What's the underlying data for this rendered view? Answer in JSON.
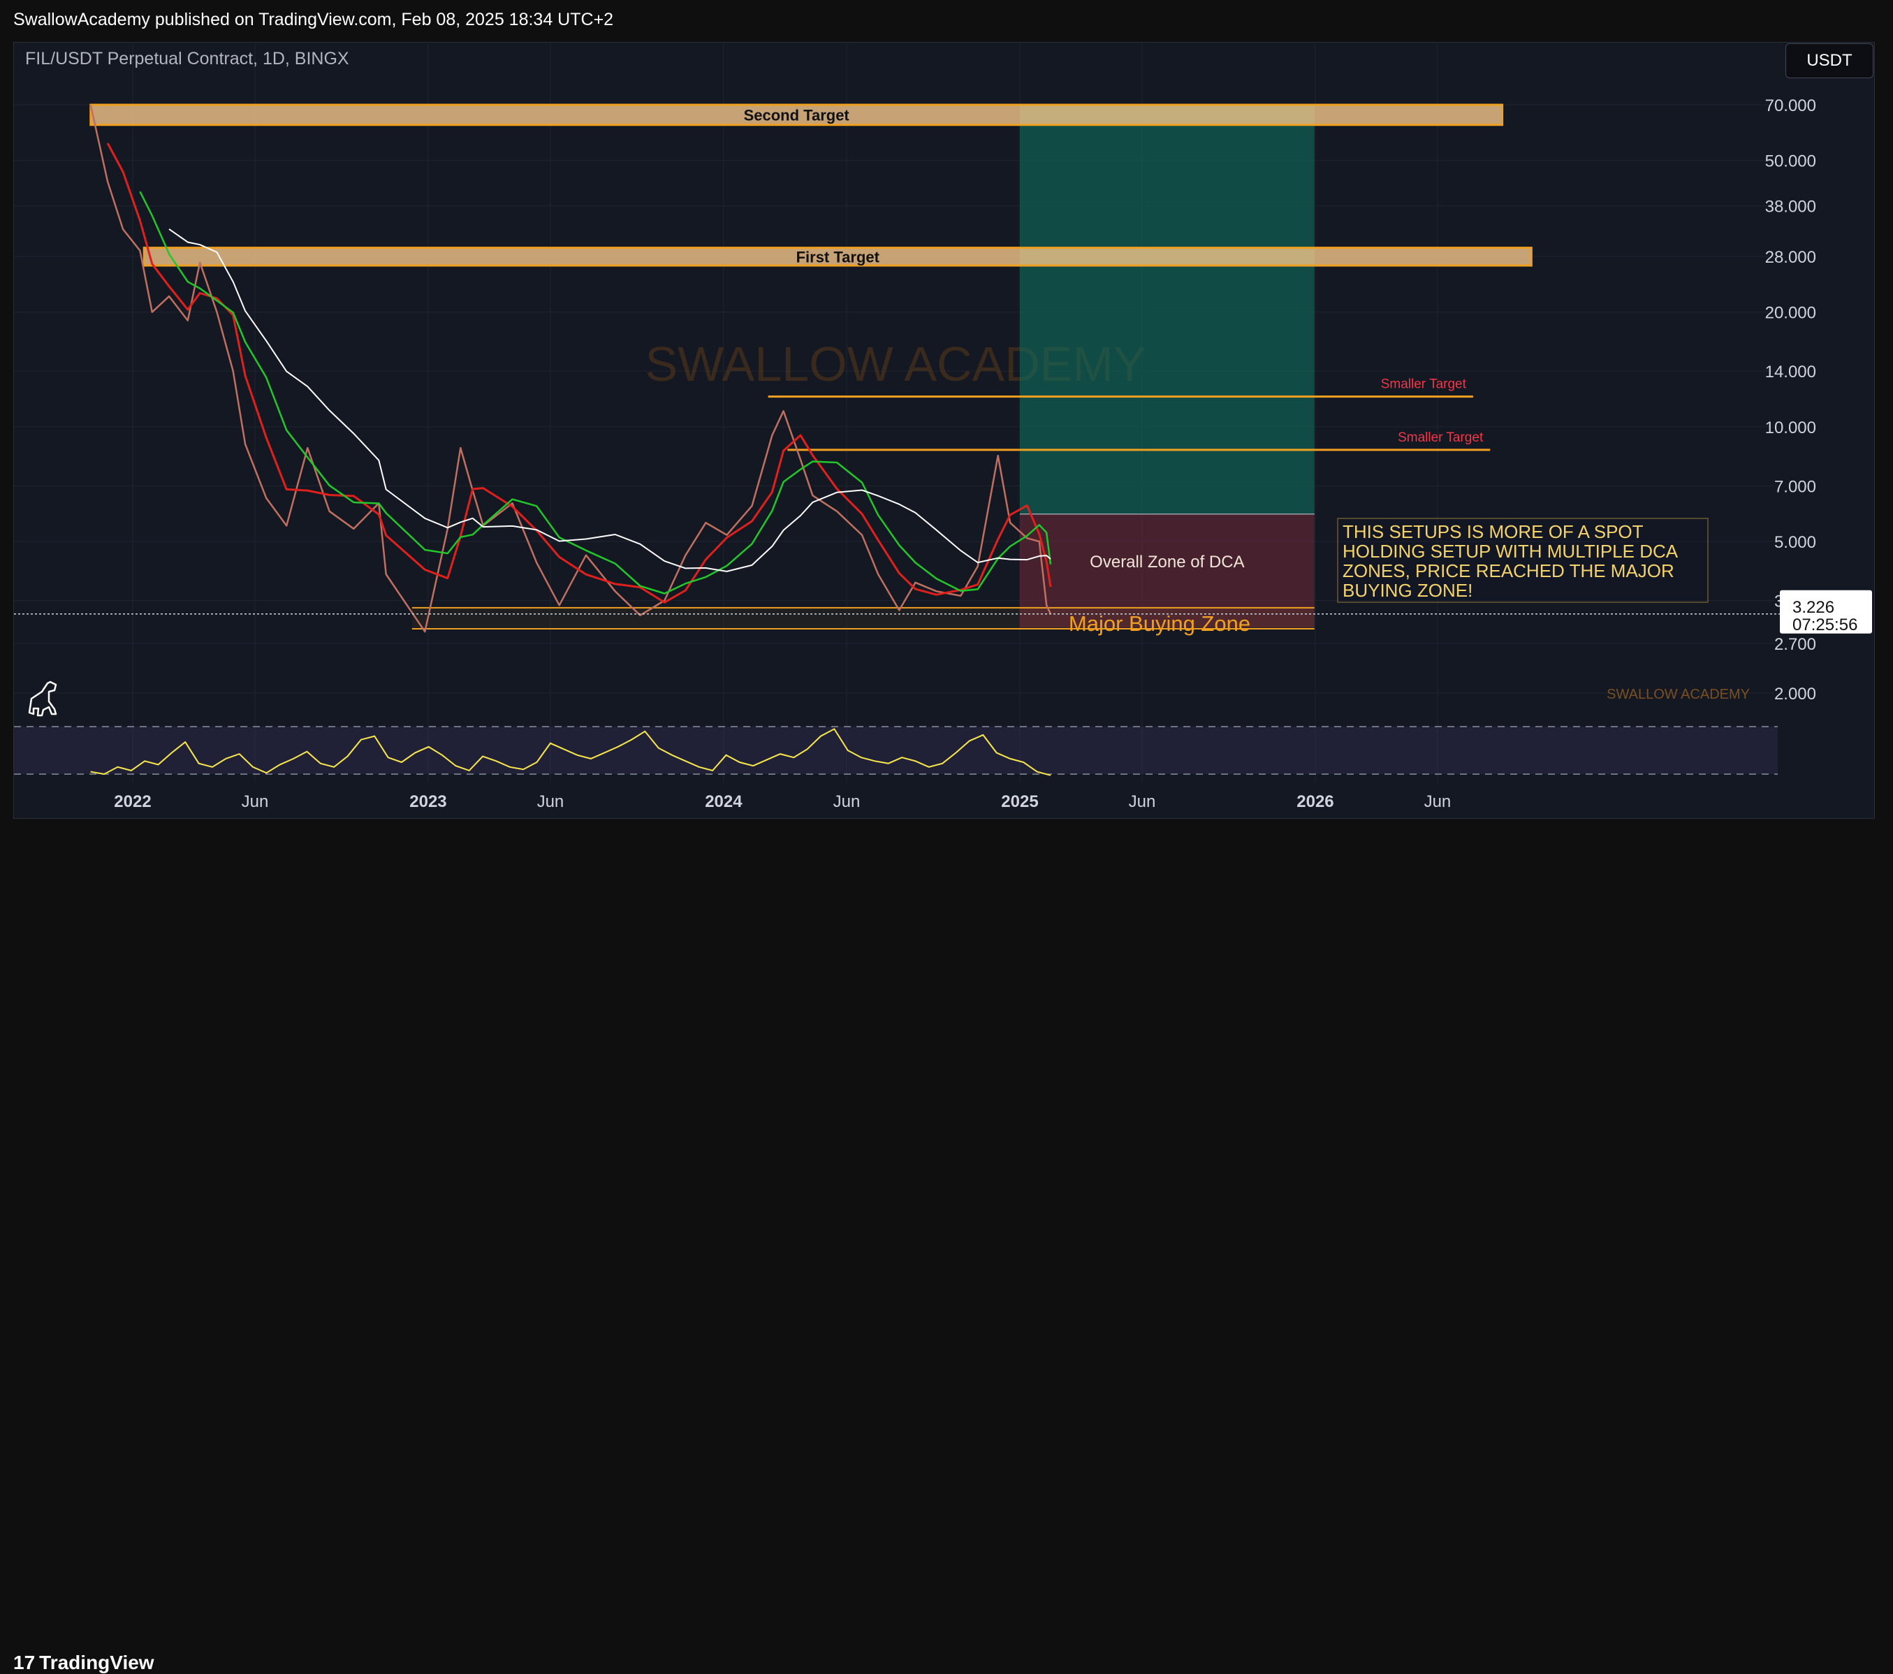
{
  "header": {
    "published_text": "SwallowAcademy published on TradingView.com, Feb 08, 2025 18:34 UTC+2"
  },
  "chart_title": "FIL/USDT Perpetual Contract, 1D, BINGX",
  "currency_button": "USDT",
  "footer": {
    "logo_text": "TradingView",
    "logo_mark": "17"
  },
  "colors": {
    "background": "#141823",
    "candle_up": "#26a69a",
    "candle_down": "#ef5350",
    "ma_red": "#e0201c",
    "ma_green": "#22c72a",
    "ma_white": "#ffffff",
    "target_zone": "#f0a020",
    "smaller_target": "#f23645",
    "rsi_line": "#f5e642",
    "rsi_purple": "#7e57c2"
  },
  "chart_data": {
    "type": "line",
    "title": "FIL/USDT Perpetual Contract, 1D, BINGX",
    "y_scale": "log",
    "y_ticks": [
      {
        "value": 70,
        "label": "70.000"
      },
      {
        "value": 50,
        "label": "50.000"
      },
      {
        "value": 38,
        "label": "38.000"
      },
      {
        "value": 28,
        "label": "28.000"
      },
      {
        "value": 20,
        "label": "20.000"
      },
      {
        "value": 14,
        "label": "14.000"
      },
      {
        "value": 10,
        "label": "10.000"
      },
      {
        "value": 7,
        "label": "7.000"
      },
      {
        "value": 5,
        "label": "5.000"
      },
      {
        "value": 3.5,
        "label": "3.500"
      },
      {
        "value": 2.7,
        "label": "2.700"
      },
      {
        "value": 2,
        "label": "2.000"
      }
    ],
    "x_ticks": [
      {
        "date": "2022-01-01",
        "label": "2022",
        "bold": true
      },
      {
        "date": "2022-06-01",
        "label": "Jun",
        "bold": false
      },
      {
        "date": "2023-01-01",
        "label": "2023",
        "bold": true
      },
      {
        "date": "2023-06-01",
        "label": "Jun",
        "bold": false
      },
      {
        "date": "2024-01-01",
        "label": "2024",
        "bold": true
      },
      {
        "date": "2024-06-01",
        "label": "Jun",
        "bold": false
      },
      {
        "date": "2025-01-01",
        "label": "2025",
        "bold": true
      },
      {
        "date": "2025-06-01",
        "label": "Jun",
        "bold": false
      },
      {
        "date": "2026-01-01",
        "label": "2026",
        "bold": true
      },
      {
        "date": "2026-06-01",
        "label": "Jun",
        "bold": false
      }
    ],
    "price_series": [
      {
        "date": "2021-11-10",
        "close": 70
      },
      {
        "date": "2021-12-01",
        "close": 44
      },
      {
        "date": "2021-12-20",
        "close": 33
      },
      {
        "date": "2022-01-10",
        "close": 29
      },
      {
        "date": "2022-01-25",
        "close": 20
      },
      {
        "date": "2022-02-15",
        "close": 22
      },
      {
        "date": "2022-03-10",
        "close": 19
      },
      {
        "date": "2022-03-25",
        "close": 27
      },
      {
        "date": "2022-04-15",
        "close": 20
      },
      {
        "date": "2022-05-05",
        "close": 14
      },
      {
        "date": "2022-05-20",
        "close": 9
      },
      {
        "date": "2022-06-15",
        "close": 6.5
      },
      {
        "date": "2022-07-10",
        "close": 5.5
      },
      {
        "date": "2022-08-05",
        "close": 8.8
      },
      {
        "date": "2022-09-01",
        "close": 6.0
      },
      {
        "date": "2022-10-01",
        "close": 5.4
      },
      {
        "date": "2022-11-01",
        "close": 6.3
      },
      {
        "date": "2022-11-10",
        "close": 4.1
      },
      {
        "date": "2022-12-28",
        "close": 2.9
      },
      {
        "date": "2023-01-25",
        "close": 5.4
      },
      {
        "date": "2023-02-10",
        "close": 8.8
      },
      {
        "date": "2023-02-25",
        "close": 6.8
      },
      {
        "date": "2023-03-10",
        "close": 5.5
      },
      {
        "date": "2023-04-15",
        "close": 6.3
      },
      {
        "date": "2023-05-15",
        "close": 4.4
      },
      {
        "date": "2023-06-12",
        "close": 3.4
      },
      {
        "date": "2023-07-15",
        "close": 4.6
      },
      {
        "date": "2023-08-20",
        "close": 3.7
      },
      {
        "date": "2023-09-20",
        "close": 3.2
      },
      {
        "date": "2023-10-20",
        "close": 3.5
      },
      {
        "date": "2023-11-15",
        "close": 4.6
      },
      {
        "date": "2023-12-10",
        "close": 5.6
      },
      {
        "date": "2024-01-05",
        "close": 5.2
      },
      {
        "date": "2024-02-05",
        "close": 6.2
      },
      {
        "date": "2024-03-01",
        "close": 9.5
      },
      {
        "date": "2024-03-15",
        "close": 11.0
      },
      {
        "date": "2024-04-05",
        "close": 8.2
      },
      {
        "date": "2024-04-20",
        "close": 6.6
      },
      {
        "date": "2024-05-20",
        "close": 6.0
      },
      {
        "date": "2024-06-20",
        "close": 5.2
      },
      {
        "date": "2024-07-10",
        "close": 4.1
      },
      {
        "date": "2024-08-05",
        "close": 3.3
      },
      {
        "date": "2024-08-25",
        "close": 3.9
      },
      {
        "date": "2024-09-20",
        "close": 3.7
      },
      {
        "date": "2024-10-20",
        "close": 3.6
      },
      {
        "date": "2024-11-10",
        "close": 4.3
      },
      {
        "date": "2024-12-05",
        "close": 8.4
      },
      {
        "date": "2024-12-20",
        "close": 5.6
      },
      {
        "date": "2025-01-10",
        "close": 5.1
      },
      {
        "date": "2025-01-25",
        "close": 5.0
      },
      {
        "date": "2025-02-03",
        "close": 3.4
      },
      {
        "date": "2025-02-08",
        "close": 3.226
      }
    ],
    "current_price": {
      "value": 3.226,
      "label": "3.226",
      "countdown": "07:25:56"
    },
    "annotations": {
      "second_target": {
        "label": "Second Target",
        "low": 62,
        "high": 70,
        "start": "2021-11-10",
        "end": "2026-08-20"
      },
      "first_target": {
        "label": "First Target",
        "low": 26.5,
        "high": 29.5,
        "start": "2022-01-15",
        "end": "2026-09-25"
      },
      "smaller_target_1": {
        "label": "Smaller Target",
        "value": 12,
        "start": "2024-02-25",
        "end": "2026-07-15"
      },
      "smaller_target_2": {
        "label": "Smaller Target",
        "value": 8.7,
        "start": "2024-03-20",
        "end": "2026-08-05"
      },
      "long_position_profit": {
        "low": 5.9,
        "high": 70,
        "start": "2025-01-01",
        "end": "2025-12-31"
      },
      "long_position_loss": {
        "low": 2.97,
        "high": 5.9,
        "start": "2025-01-01",
        "end": "2025-12-31"
      },
      "dca_zone_label": "Overall Zone of DCA",
      "buying_zone": {
        "label": "Major Buying Zone",
        "low": 2.95,
        "high": 3.35,
        "start": "2022-12-12",
        "end": "2025-12-31"
      },
      "note": "THIS SETUPS IS MORE OF A SPOT HOLDING SETUP WITH MULTIPLE DCA ZONES, PRICE REACHED THE MAJOR BUYING ZONE!",
      "watermark": "SWALLOW ACADEMY",
      "watermark_small": "SWALLOW ACADEMY"
    },
    "rsi": {
      "levels": [
        70,
        30
      ],
      "values": [
        32,
        30,
        36,
        33,
        41,
        38,
        48,
        57,
        39,
        36,
        43,
        47,
        36,
        31,
        38,
        43,
        49,
        39,
        36,
        45,
        59,
        62,
        44,
        40,
        48,
        53,
        46,
        37,
        33,
        45,
        41,
        36,
        34,
        40,
        56,
        51,
        46,
        43,
        48,
        53,
        59,
        66,
        52,
        46,
        41,
        36,
        33,
        46,
        40,
        37,
        42,
        47,
        44,
        51,
        62,
        68,
        50,
        44,
        41,
        39,
        44,
        41,
        36,
        39,
        48,
        58,
        63,
        48,
        43,
        40,
        32,
        29
      ]
    },
    "grid": true,
    "legend": "none"
  }
}
